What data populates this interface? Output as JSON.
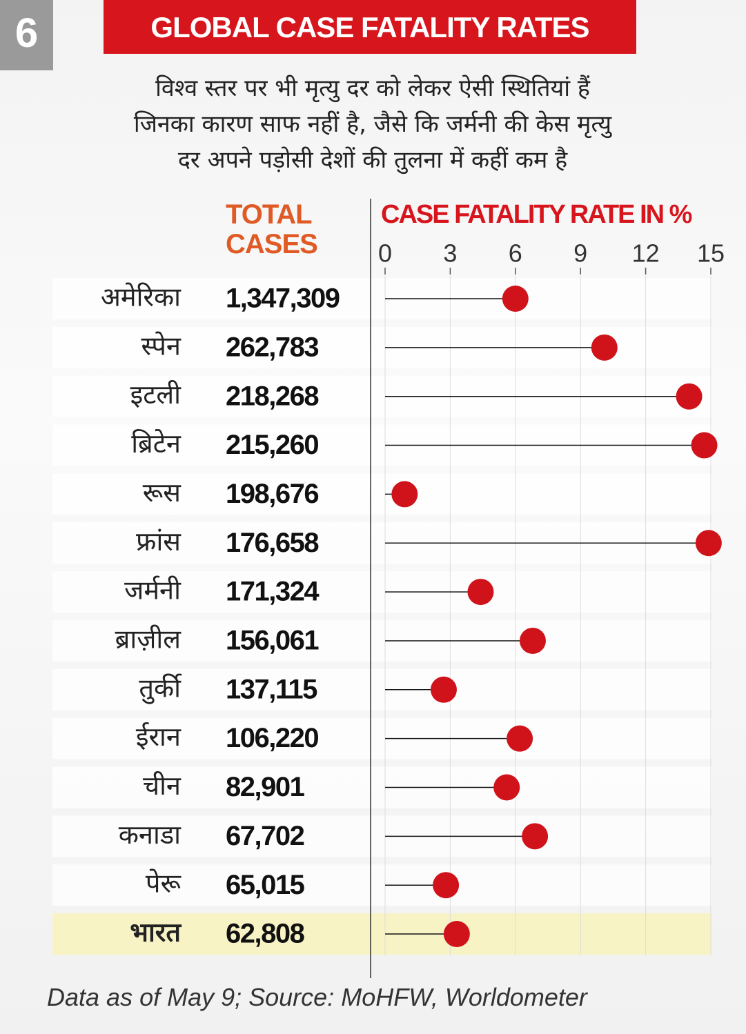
{
  "chart_data": {
    "type": "lollipop",
    "badge": "6",
    "title": "GLOBAL CASE FATALITY RATES",
    "subtitle": [
      "विश्व स्तर पर भी मृत्यु दर को लेकर ऐसी स्थितियां हैं",
      "जिनका कारण साफ नहीं है, जैसे कि जर्मनी की केस मृत्यु",
      "दर अपने पड़ोसी देशों की तुलना में कहीं कम है"
    ],
    "cases_header": "TOTAL CASES",
    "x_label": "CASE FATALITY RATE IN %",
    "categories": [
      "अमेरिका",
      "स्पेन",
      "इटली",
      "ब्रिटेन",
      "रूस",
      "फ्रांस",
      "जर्मनी",
      "ब्राज़ील",
      "तुर्की",
      "ईरान",
      "चीन",
      "कनाडा",
      "पेरू",
      "भारत"
    ],
    "total_cases": [
      "1,347,309",
      "262,783",
      "218,268",
      "215,260",
      "198,676",
      "176,658",
      "171,324",
      "156,061",
      "137,115",
      "106,220",
      "82,901",
      "67,702",
      "65,015",
      "62,808"
    ],
    "values": [
      6.0,
      10.1,
      14.0,
      14.7,
      0.9,
      14.9,
      4.4,
      6.8,
      2.7,
      6.2,
      5.6,
      6.9,
      2.8,
      3.3
    ],
    "color": "#d0131b",
    "highlight": "भारत",
    "highlight_color": "#f8f3c5",
    "xlim": [
      0,
      15
    ],
    "xticks": [
      0,
      3,
      6,
      9,
      12,
      15
    ],
    "grid": true,
    "source": "Data as of May 9; Source: MoHFW, Worldometer"
  }
}
